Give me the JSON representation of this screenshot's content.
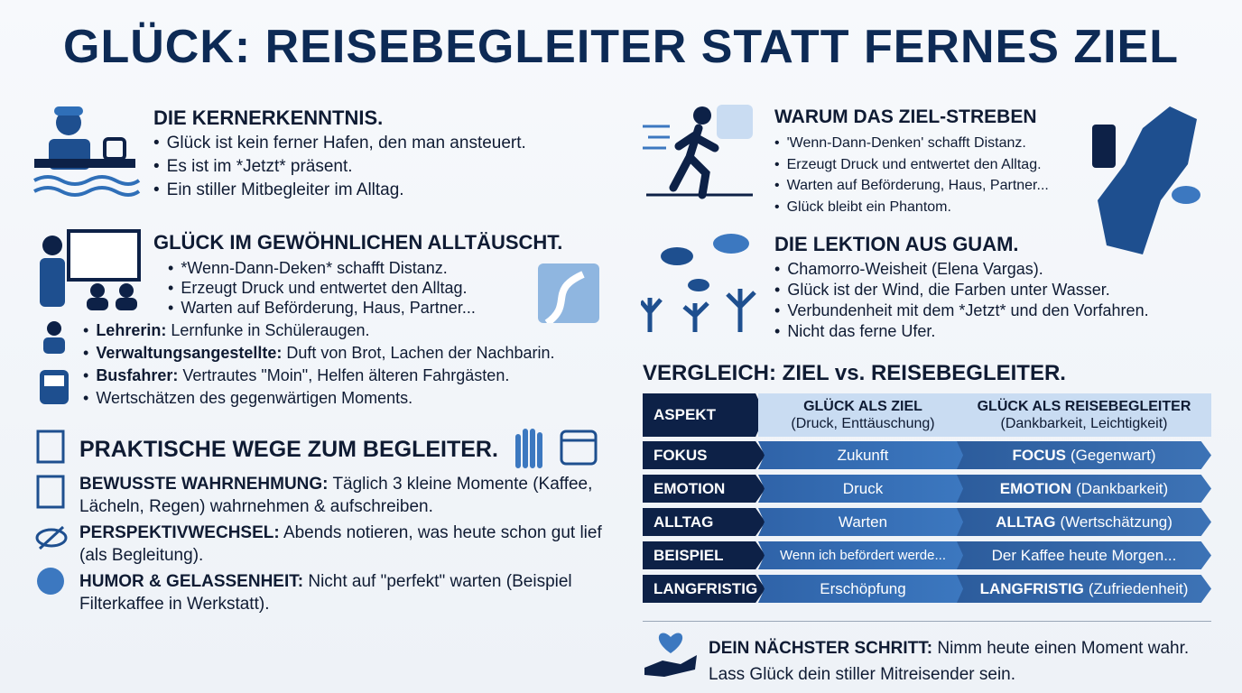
{
  "title": "GLÜCK: REISEBEGLEITER STATT FERNES ZIEL",
  "kernerkenntnis": {
    "heading": "DIE KERNERKENNTNIS.",
    "bullets": [
      "Glück ist kein ferner Hafen, den man ansteuert.",
      "Es ist im *Jetzt* präsent.",
      "Ein stiller Mitbegleiter im Alltag."
    ]
  },
  "alltag": {
    "heading": "GLÜCK IM GEWÖHNLICHEN ALLTÄUSCHT.",
    "bullets": [
      "*Wenn-Dann-Deken* schafft Distanz.",
      "Erzeugt Druck und entwertet den Alltag.",
      "Warten auf Beförderung, Haus, Partner..."
    ],
    "examples": [
      {
        "label": "Lehrerin:",
        "text": "Lernfunke in Schüleraugen."
      },
      {
        "label": "Verwaltungsangestellte:",
        "text": "Duft von Brot, Lachen der Nachbarin."
      },
      {
        "label": "Busfahrer:",
        "text": "Vertrautes \"Moin\", Helfen älteren Fahrgästen."
      }
    ],
    "closing": "Wertschätzen des gegenwärtigen Moments."
  },
  "wege": {
    "heading": "PRAKTISCHE WEGE ZUM BEGLEITER.",
    "items": [
      {
        "label": "BEWUSSTE WAHRNEHMUNG:",
        "text": "Täglich 3 kleine Momente (Kaffee, Lächeln, Regen) wahrnehmen & aufschreiben."
      },
      {
        "label": "PERSPEKTIVWECHSEL:",
        "text": "Abends notieren, was heute schon gut lief (als Begleitung)."
      },
      {
        "label": "HUMOR & GELASSENHEIT:",
        "text": "Nicht auf \"perfekt\" warten (Beispiel Filterkaffee in Werkstatt)."
      }
    ]
  },
  "zielstreben": {
    "heading": "WARUM DAS ZIEL-STREBEN",
    "bullets": [
      "'Wenn-Dann-Denken' schafft Distanz.",
      "Erzeugt Druck und entwertet den Alltag.",
      "Warten auf Beförderung, Haus, Partner...",
      "Glück bleibt ein Phantom."
    ]
  },
  "guam": {
    "heading": "DIE LEKTION AUS GUAM.",
    "bullets": [
      "Chamorro-Weisheit (Elena Vargas).",
      "Glück ist der Wind, die Farben unter Wasser.",
      "Verbundenheit mit dem *Jetzt* und den Vorfahren.",
      "Nicht das ferne Ufer."
    ]
  },
  "vergleich": {
    "title": "VERGLEICH: ZIEL vs. REISEBEGLEITER.",
    "header": [
      {
        "title": "ASPEKT"
      },
      {
        "title": "GLÜCK ALS ZIEL",
        "subtitle": "(Druck, Enttäuschung)"
      },
      {
        "title": "GLÜCK ALS REISEBEGLEITER",
        "subtitle": "(Dankbarkeit, Leichtigkeit)"
      }
    ],
    "rows": [
      {
        "aspekt": "FOKUS",
        "ziel": "Zukunft",
        "begleiter_label": "FOCUS",
        "begleiter_text": "(Gegenwart)"
      },
      {
        "aspekt": "EMOTION",
        "ziel": "Druck",
        "begleiter_label": "EMOTION",
        "begleiter_text": "(Dankbarkeit)"
      },
      {
        "aspekt": "ALLTAG",
        "ziel": "Warten",
        "begleiter_label": "ALLTAG",
        "begleiter_text": "(Wertschätzung)"
      },
      {
        "aspekt": "BEISPIEL",
        "ziel": "Wenn ich befördert werde...",
        "begleiter_text": "Der Kaffee heute Morgen..."
      },
      {
        "aspekt": "LANGFRISTIG",
        "ziel": "Erschöpfung",
        "begleiter_label": "LANGFRISTIG",
        "begleiter_text": "(Zufriedenheit)"
      }
    ]
  },
  "naechster_schritt": {
    "label": "DEIN NÄCHSTER SCHRITT:",
    "text": "Nimm heute einen Moment wahr. Lass Glück dein stiller Mitreisender sein."
  }
}
